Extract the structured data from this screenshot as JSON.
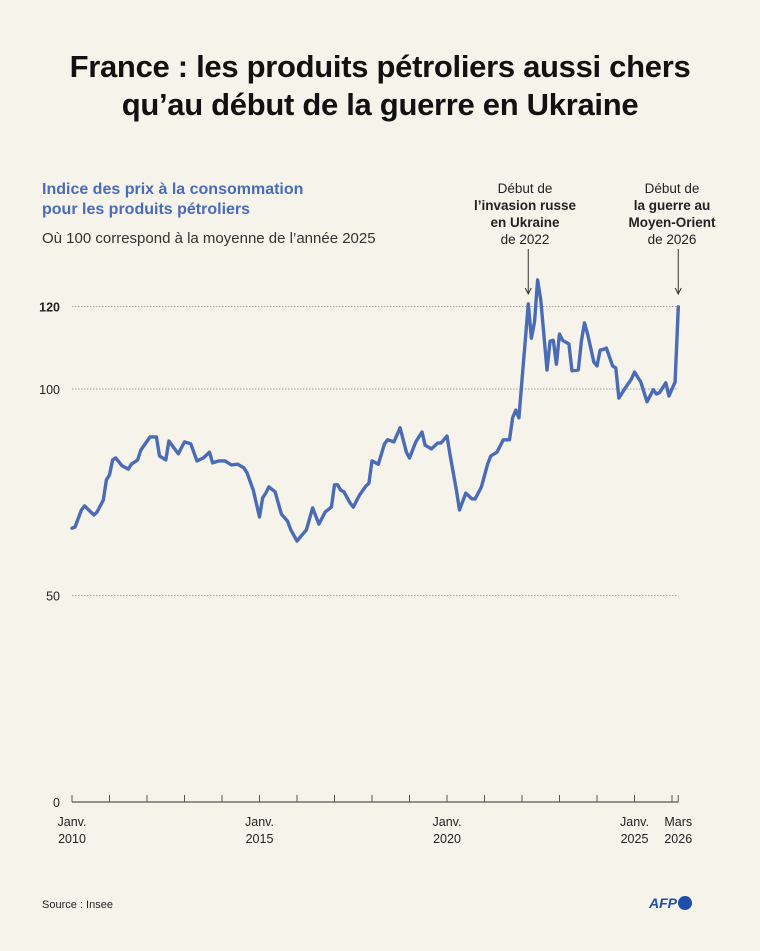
{
  "title_line1": "France : les produits pétroliers aussi chers",
  "title_line2": "qu’au début de la guerre en Ukraine",
  "chart_data": {
    "type": "line",
    "title": "Indice des prix à la consommation pour les produits pétroliers",
    "title_line1": "Indice des prix à la consommation",
    "title_line2": "pour les produits pétroliers",
    "subtitle": "Où 100 correspond à la moyenne de l’année 2025",
    "line_color": "#4a6bb5",
    "ylim": [
      0,
      130
    ],
    "yticks": [
      0,
      50,
      100,
      120
    ],
    "ytick_labels": [
      "0",
      "50",
      "100",
      "120"
    ],
    "grid": "dotted horizontal at 50, 100, 120",
    "xlim": [
      "2010-01",
      "2026-03"
    ],
    "xtick_labels": [
      {
        "date": "2010-01",
        "line1": "Janv.",
        "line2": "2010"
      },
      {
        "date": "2015-01",
        "line1": "Janv.",
        "line2": "2015"
      },
      {
        "date": "2020-01",
        "line1": "Janv.",
        "line2": "2020"
      },
      {
        "date": "2025-01",
        "line1": "Janv.",
        "line2": "2025"
      },
      {
        "date": "2026-03",
        "line1": "Mars",
        "line2": "2026"
      }
    ],
    "series": [
      {
        "x": [
          "2010-01",
          "2010-02",
          "2010-04",
          "2010-05",
          "2010-08",
          "2010-09",
          "2010-11",
          "2010-12",
          "2011-01",
          "2011-02",
          "2011-03",
          "2011-05",
          "2011-07",
          "2011-08",
          "2011-10",
          "2011-11",
          "2012-02",
          "2012-04",
          "2012-05",
          "2012-07",
          "2012-08",
          "2012-09",
          "2012-11",
          "2013-01",
          "2013-03",
          "2013-05",
          "2013-07",
          "2013-09",
          "2013-10",
          "2013-12",
          "2014-02",
          "2014-04",
          "2014-06",
          "2014-08",
          "2014-09",
          "2014-11",
          "2015-01",
          "2015-02",
          "2015-03",
          "2015-04",
          "2015-06",
          "2015-08",
          "2015-10",
          "2015-11",
          "2016-01",
          "2016-04",
          "2016-06",
          "2016-08",
          "2016-10",
          "2016-12",
          "2017-01",
          "2017-02",
          "2017-03",
          "2017-04",
          "2017-06",
          "2017-07",
          "2017-09",
          "2017-11",
          "2017-12",
          "2018-01",
          "2018-03",
          "2018-05",
          "2018-06",
          "2018-08",
          "2018-10",
          "2018-12",
          "2019-01",
          "2019-03",
          "2019-05",
          "2019-06",
          "2019-08",
          "2019-10",
          "2019-11",
          "2020-01",
          "2020-02",
          "2020-04",
          "2020-05",
          "2020-07",
          "2020-09",
          "2020-10",
          "2020-12",
          "2021-02",
          "2021-03",
          "2021-05",
          "2021-07",
          "2021-09",
          "2021-10",
          "2021-11",
          "2021-12",
          "2022-01",
          "2022-03",
          "2022-04",
          "2022-05",
          "2022-06",
          "2022-07",
          "2022-09",
          "2022-10",
          "2022-11",
          "2022-12",
          "2023-01",
          "2023-02",
          "2023-04",
          "2023-05",
          "2023-07",
          "2023-08",
          "2023-09",
          "2023-10",
          "2023-12",
          "2024-01",
          "2024-02",
          "2024-03",
          "2024-04",
          "2024-06",
          "2024-07",
          "2024-08",
          "2024-10",
          "2024-12",
          "2025-01",
          "2025-03",
          "2025-05",
          "2025-07",
          "2025-08",
          "2025-09",
          "2025-11",
          "2025-12",
          "2026-02",
          "2026-03"
        ],
        "values": [
          66.3,
          66.6,
          70.7,
          71.7,
          69.5,
          70.2,
          73.1,
          78,
          79.2,
          82.8,
          83.3,
          81.4,
          80.6,
          81.8,
          82.8,
          85.2,
          88.4,
          88.4,
          83.8,
          82.8,
          87.4,
          86.4,
          84.3,
          87.2,
          86.7,
          82.6,
          83.3,
          84.7,
          82.1,
          82.6,
          82.6,
          81.6,
          81.8,
          80.9,
          79.7,
          75.5,
          69.0,
          73.6,
          74.8,
          76.3,
          75.1,
          69.7,
          68,
          65.9,
          63.2,
          65.9,
          71.2,
          67.3,
          70.2,
          71.4,
          76.8,
          76.8,
          75.5,
          75.1,
          72.4,
          71.4,
          74.3,
          76.5,
          77.2,
          82.6,
          81.8,
          86.7,
          87.7,
          87.2,
          90.6,
          84.7,
          83.3,
          87.2,
          89.6,
          86.4,
          85.5,
          86.9,
          86.9,
          88.6,
          84.0,
          75.5,
          70.7,
          74.8,
          73.4,
          73.4,
          76.3,
          81.8,
          83.8,
          84.7,
          87.7,
          87.7,
          93,
          94.9,
          93,
          102.2,
          120.6,
          112.3,
          116.2,
          126.4,
          121.5,
          104.6,
          111.6,
          111.8,
          106,
          113.3,
          111.8,
          110.9,
          104.4,
          104.6,
          111.6,
          116,
          113.3,
          106.5,
          105.6,
          109.4,
          109.6,
          109.9,
          105.6,
          105.1,
          97.8,
          100.2,
          102.4,
          104.1,
          101.7,
          96.9,
          99.8,
          98.8,
          99.1,
          101.5,
          98.3,
          101.7,
          119.9
        ]
      }
    ],
    "annotations": [
      {
        "date": "2022-03",
        "line1": "Début de",
        "bold1": "l’invasion russe",
        "bold2": "en Ukraine",
        "line4": "de 2022"
      },
      {
        "date": "2026-03",
        "line1": "Début de",
        "bold1": "la guerre au",
        "bold2": "Moyen-Orient",
        "line4": "de 2026"
      }
    ]
  },
  "source": "Source : Insee",
  "logo": "AFP"
}
